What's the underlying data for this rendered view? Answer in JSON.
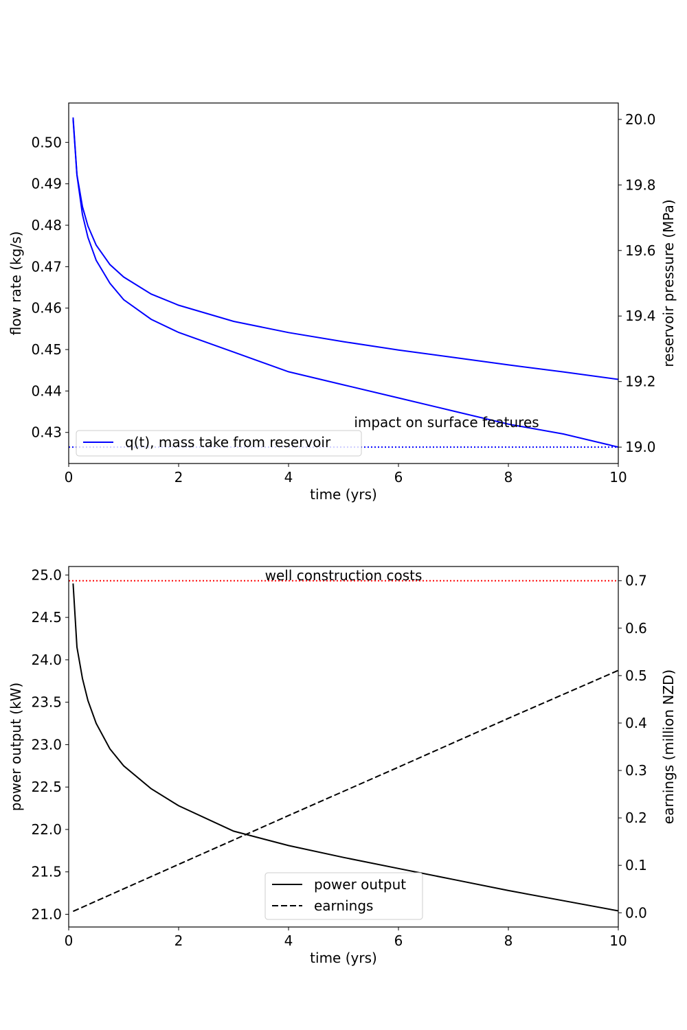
{
  "chart_data": [
    {
      "type": "line",
      "xlabel": "time (yrs)",
      "ylabel": "flow rate (kg/s)",
      "y2label": "reservoir pressure (MPa)",
      "xlim": [
        0,
        10
      ],
      "ylim": [
        0.4225,
        0.5095
      ],
      "y2lim": [
        18.95,
        20.05
      ],
      "xticks": [
        0,
        2,
        4,
        6,
        8,
        10
      ],
      "yticks": [
        0.43,
        0.44,
        0.45,
        0.46,
        0.47,
        0.48,
        0.49,
        0.5
      ],
      "y2ticks": [
        19.0,
        19.2,
        19.4,
        19.6,
        19.8,
        20.0
      ],
      "grid": false,
      "legend_position": "lower-left",
      "annotations": [
        "impact on surface features"
      ],
      "series": [
        {
          "name": "q(t), mass take from reservoir",
          "axis": "left",
          "color": "#0000ff",
          "style": "solid",
          "x": [
            0.08,
            0.15,
            0.25,
            0.35,
            0.5,
            0.75,
            1,
            1.5,
            2,
            3,
            4,
            5,
            6,
            7,
            8,
            9,
            10
          ],
          "y": [
            0.506,
            0.4922,
            0.4845,
            0.4798,
            0.4752,
            0.4705,
            0.4675,
            0.4634,
            0.4607,
            0.4568,
            0.4541,
            0.4519,
            0.4499,
            0.4481,
            0.4463,
            0.4446,
            0.4428
          ]
        },
        {
          "axis": "right",
          "color": "#0000ff",
          "style": "solid",
          "x": [
            0.08,
            0.15,
            0.25,
            0.35,
            0.5,
            0.75,
            1,
            1.5,
            2,
            3,
            4,
            5,
            6,
            7,
            8,
            9,
            10
          ],
          "y": [
            20.0,
            19.83,
            19.71,
            19.64,
            19.57,
            19.5,
            19.45,
            19.39,
            19.35,
            19.29,
            19.23,
            19.19,
            19.15,
            19.11,
            19.07,
            19.04,
            19.0
          ]
        },
        {
          "axis": "right",
          "color": "#0000ff",
          "style": "dotted",
          "x": [
            0,
            10
          ],
          "y": [
            19.0,
            19.0
          ]
        }
      ]
    },
    {
      "type": "line",
      "xlabel": "time (yrs)",
      "ylabel": "power output (kW)",
      "y2label": "earnings (million NZD)",
      "xlim": [
        0,
        10
      ],
      "ylim": [
        20.85,
        25.1
      ],
      "y2lim": [
        -0.03,
        0.73
      ],
      "xticks": [
        0,
        2,
        4,
        6,
        8,
        10
      ],
      "yticks": [
        21.0,
        21.5,
        22.0,
        22.5,
        23.0,
        23.5,
        24.0,
        24.5,
        25.0
      ],
      "y2ticks": [
        0.0,
        0.1,
        0.2,
        0.3,
        0.4,
        0.5,
        0.6,
        0.7
      ],
      "grid": false,
      "legend_position": "lower-center",
      "annotations": [
        "well construction costs"
      ],
      "series": [
        {
          "name": "power output",
          "axis": "left",
          "color": "#000000",
          "style": "solid",
          "x": [
            0.08,
            0.15,
            0.25,
            0.35,
            0.5,
            0.75,
            1,
            1.5,
            2,
            3,
            4,
            5,
            6,
            7,
            8,
            9,
            10
          ],
          "y": [
            24.9,
            24.15,
            23.78,
            23.52,
            23.25,
            22.95,
            22.75,
            22.48,
            22.28,
            21.98,
            21.81,
            21.67,
            21.54,
            21.41,
            21.28,
            21.16,
            21.04
          ]
        },
        {
          "name": "earnings",
          "axis": "right",
          "color": "#000000",
          "style": "dashed",
          "x": [
            0.08,
            2,
            4,
            6,
            8,
            10
          ],
          "y": [
            0.003,
            0.102,
            0.205,
            0.307,
            0.41,
            0.511
          ]
        },
        {
          "axis": "right",
          "color": "#ff0000",
          "style": "dotted",
          "x": [
            0,
            10
          ],
          "y": [
            0.7,
            0.7
          ]
        }
      ]
    }
  ]
}
